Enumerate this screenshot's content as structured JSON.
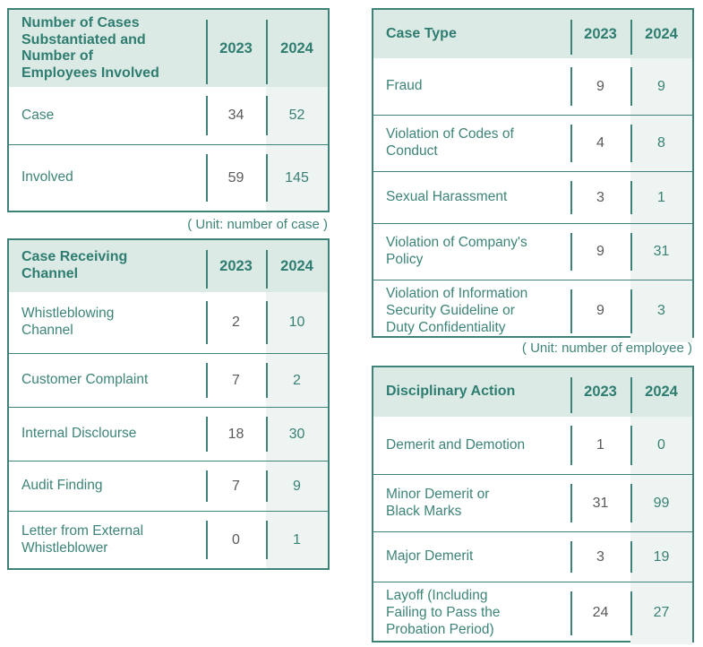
{
  "colors": {
    "border": "#3F8277",
    "header_background": "#DCEAE6",
    "header_text": "#2E7D70",
    "label_text": "#3E8478",
    "value_2023_text": "#595A5C",
    "value_2024_text": "#3A8175",
    "column_2024_background": "#EEF4F1"
  },
  "tables": [
    {
      "title": "Number of Cases\nSubstantiated and\nNumber of\nEmployees Involved",
      "columns": [
        "2023",
        "2024"
      ],
      "rows": [
        {
          "label": "Case",
          "values": [
            "34",
            "52"
          ]
        },
        {
          "label": "Involved",
          "values": [
            "59",
            "145"
          ]
        }
      ],
      "caption": "( Unit: number of case )"
    },
    {
      "title": "Case Receiving\nChannel",
      "columns": [
        "2023",
        "2024"
      ],
      "rows": [
        {
          "label": "Whistleblowing\nChannel",
          "values": [
            "2",
            "10"
          ]
        },
        {
          "label": "Customer Complaint",
          "values": [
            "7",
            "2"
          ]
        },
        {
          "label": "Internal Disclourse",
          "values": [
            "18",
            "30"
          ]
        },
        {
          "label": "Audit Finding",
          "values": [
            "7",
            "9"
          ]
        },
        {
          "label": "Letter from External\nWhistleblower",
          "values": [
            "0",
            "1"
          ]
        }
      ]
    },
    {
      "title": "Case Type",
      "columns": [
        "2023",
        "2024"
      ],
      "rows": [
        {
          "label": "Fraud",
          "values": [
            "9",
            "9"
          ]
        },
        {
          "label": "Violation of Codes of\nConduct",
          "values": [
            "4",
            "8"
          ]
        },
        {
          "label": "Sexual Harassment",
          "values": [
            "3",
            "1"
          ]
        },
        {
          "label": "Violation of Company's\nPolicy",
          "values": [
            "9",
            "31"
          ]
        },
        {
          "label": "Violation of Information\nSecurity Guideline or\nDuty Confidentiality",
          "values": [
            "9",
            "3"
          ]
        }
      ],
      "caption": "( Unit: number of employee )"
    },
    {
      "title": "Disciplinary Action",
      "columns": [
        "2023",
        "2024"
      ],
      "rows": [
        {
          "label": "Demerit and Demotion",
          "values": [
            "1",
            "0"
          ]
        },
        {
          "label": "Minor Demerit or\nBlack Marks",
          "values": [
            "31",
            "99"
          ]
        },
        {
          "label": "Major Demerit",
          "values": [
            "3",
            "19"
          ]
        },
        {
          "label": "Layoff (Including\nFailing to Pass the\nProbation Period)",
          "values": [
            "24",
            "27"
          ]
        }
      ]
    }
  ]
}
